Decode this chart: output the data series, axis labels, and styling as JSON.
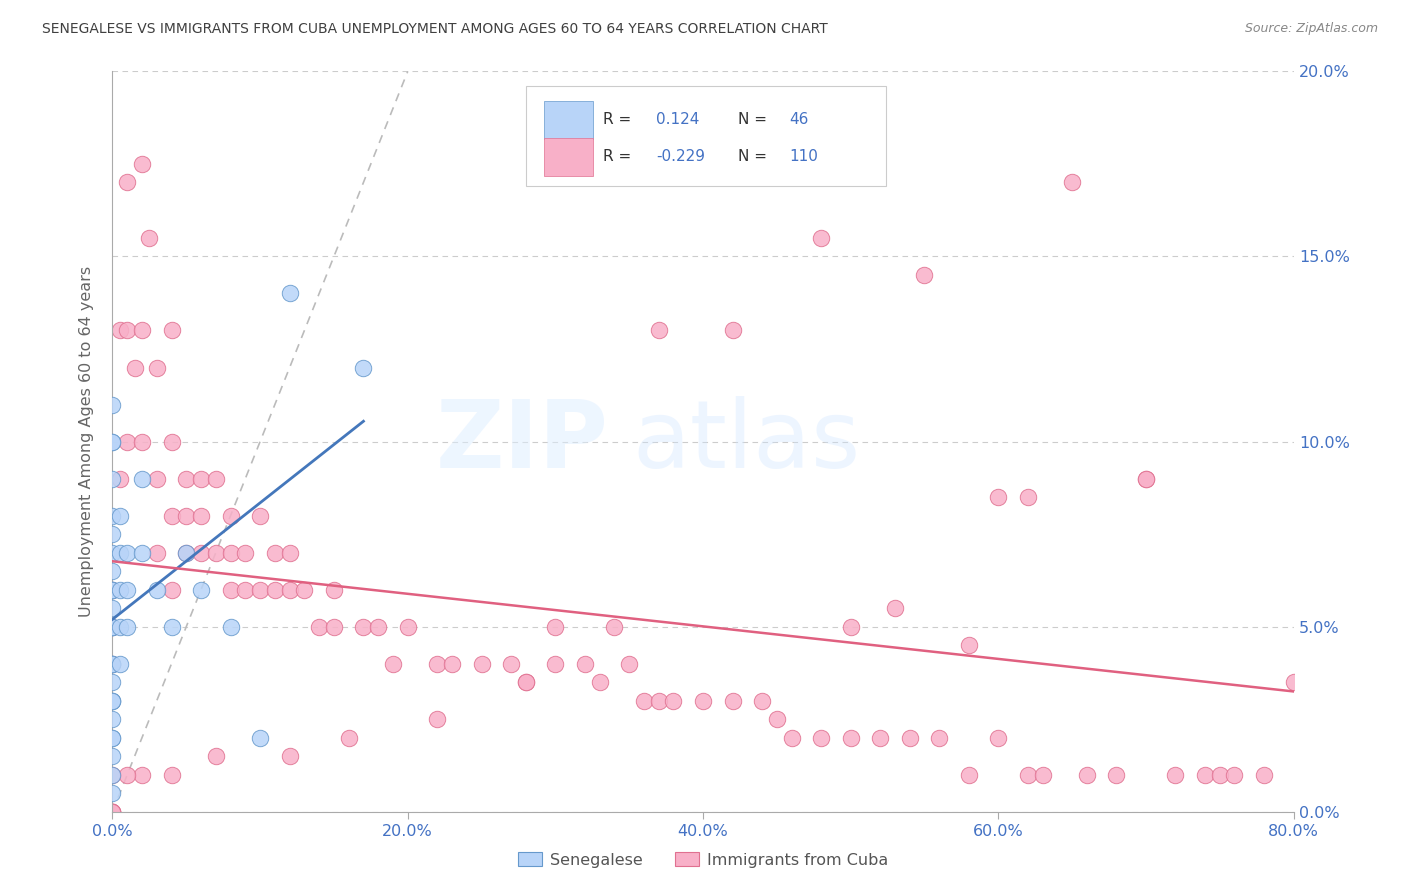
{
  "title": "SENEGALESE VS IMMIGRANTS FROM CUBA UNEMPLOYMENT AMONG AGES 60 TO 64 YEARS CORRELATION CHART",
  "source": "Source: ZipAtlas.com",
  "ylabel": "Unemployment Among Ages 60 to 64 years",
  "xlim": [
    0.0,
    0.8
  ],
  "ylim": [
    0.0,
    0.2
  ],
  "xticks": [
    0.0,
    0.2,
    0.4,
    0.6,
    0.8
  ],
  "yticks": [
    0.0,
    0.05,
    0.1,
    0.15,
    0.2
  ],
  "ytick_labels": [
    "0.0%",
    "5.0%",
    "10.0%",
    "15.0%",
    "20.0%"
  ],
  "xtick_labels": [
    "0.0%",
    "20.0%",
    "40.0%",
    "60.0%",
    "80.0%"
  ],
  "color_senegalese_fill": "#b8d4f8",
  "color_senegalese_edge": "#6699cc",
  "color_cuba_fill": "#f8b0c8",
  "color_cuba_edge": "#e07090",
  "color_senegalese_line": "#4477bb",
  "color_cuba_line": "#e06080",
  "color_axis_blue": "#4472c4",
  "color_grid": "#cccccc",
  "color_title": "#404040",
  "color_source": "#888888",
  "legend_box_edge": "#cccccc",
  "legend_r1_text": "R = ",
  "legend_r1_val": "0.124",
  "legend_n1_text": "N = ",
  "legend_n1_val": "46",
  "legend_r2_text": "R = ",
  "legend_r2_val": "-0.229",
  "legend_n2_text": "N = ",
  "legend_n2_val": "110",
  "senegalese_x": [
    0.0,
    0.0,
    0.0,
    0.0,
    0.0,
    0.0,
    0.0,
    0.0,
    0.0,
    0.0,
    0.0,
    0.0,
    0.0,
    0.0,
    0.0,
    0.0,
    0.0,
    0.0,
    0.0,
    0.0,
    0.0,
    0.0,
    0.0,
    0.0,
    0.0,
    0.0,
    0.0,
    0.0,
    0.005,
    0.005,
    0.005,
    0.005,
    0.005,
    0.01,
    0.01,
    0.01,
    0.02,
    0.02,
    0.03,
    0.04,
    0.05,
    0.06,
    0.08,
    0.1,
    0.12,
    0.17
  ],
  "senegalese_y": [
    0.005,
    0.01,
    0.015,
    0.02,
    0.025,
    0.03,
    0.03,
    0.035,
    0.04,
    0.04,
    0.05,
    0.05,
    0.055,
    0.06,
    0.06,
    0.065,
    0.07,
    0.075,
    0.08,
    0.09,
    0.1,
    0.1,
    0.11,
    0.05,
    0.06,
    0.04,
    0.03,
    0.02,
    0.06,
    0.07,
    0.05,
    0.08,
    0.04,
    0.07,
    0.06,
    0.05,
    0.07,
    0.09,
    0.06,
    0.05,
    0.07,
    0.06,
    0.05,
    0.02,
    0.14,
    0.12
  ],
  "cuba_x": [
    0.0,
    0.0,
    0.0,
    0.005,
    0.005,
    0.01,
    0.01,
    0.01,
    0.015,
    0.02,
    0.02,
    0.02,
    0.025,
    0.03,
    0.03,
    0.03,
    0.04,
    0.04,
    0.04,
    0.04,
    0.05,
    0.05,
    0.05,
    0.06,
    0.06,
    0.06,
    0.07,
    0.07,
    0.08,
    0.08,
    0.08,
    0.09,
    0.09,
    0.1,
    0.1,
    0.11,
    0.11,
    0.12,
    0.12,
    0.13,
    0.14,
    0.15,
    0.15,
    0.17,
    0.18,
    0.19,
    0.2,
    0.22,
    0.23,
    0.25,
    0.27,
    0.28,
    0.3,
    0.3,
    0.32,
    0.33,
    0.35,
    0.36,
    0.37,
    0.38,
    0.4,
    0.42,
    0.44,
    0.45,
    0.46,
    0.48,
    0.5,
    0.52,
    0.54,
    0.55,
    0.56,
    0.58,
    0.6,
    0.6,
    0.62,
    0.63,
    0.65,
    0.66,
    0.68,
    0.7,
    0.72,
    0.74,
    0.75,
    0.76,
    0.78,
    0.8,
    0.37,
    0.5,
    0.62,
    0.7,
    0.42,
    0.48,
    0.53,
    0.58,
    0.34,
    0.28,
    0.22,
    0.16,
    0.12,
    0.07,
    0.04,
    0.02,
    0.01,
    0.0,
    0.0,
    0.0,
    0.0,
    0.0,
    0.0,
    0.0
  ],
  "cuba_y": [
    0.06,
    0.05,
    0.04,
    0.13,
    0.09,
    0.17,
    0.13,
    0.1,
    0.12,
    0.175,
    0.13,
    0.1,
    0.155,
    0.12,
    0.09,
    0.07,
    0.13,
    0.1,
    0.08,
    0.06,
    0.09,
    0.08,
    0.07,
    0.09,
    0.08,
    0.07,
    0.09,
    0.07,
    0.08,
    0.07,
    0.06,
    0.07,
    0.06,
    0.08,
    0.06,
    0.07,
    0.06,
    0.07,
    0.06,
    0.06,
    0.05,
    0.06,
    0.05,
    0.05,
    0.05,
    0.04,
    0.05,
    0.04,
    0.04,
    0.04,
    0.04,
    0.035,
    0.05,
    0.04,
    0.04,
    0.035,
    0.04,
    0.03,
    0.03,
    0.03,
    0.03,
    0.03,
    0.03,
    0.025,
    0.02,
    0.02,
    0.02,
    0.02,
    0.02,
    0.145,
    0.02,
    0.01,
    0.085,
    0.02,
    0.01,
    0.01,
    0.17,
    0.01,
    0.01,
    0.09,
    0.01,
    0.01,
    0.01,
    0.01,
    0.01,
    0.035,
    0.13,
    0.05,
    0.085,
    0.09,
    0.13,
    0.155,
    0.055,
    0.045,
    0.05,
    0.035,
    0.025,
    0.02,
    0.015,
    0.015,
    0.01,
    0.01,
    0.01,
    0.01,
    0.0,
    0.0,
    0.0,
    0.0,
    0.0,
    0.0
  ]
}
